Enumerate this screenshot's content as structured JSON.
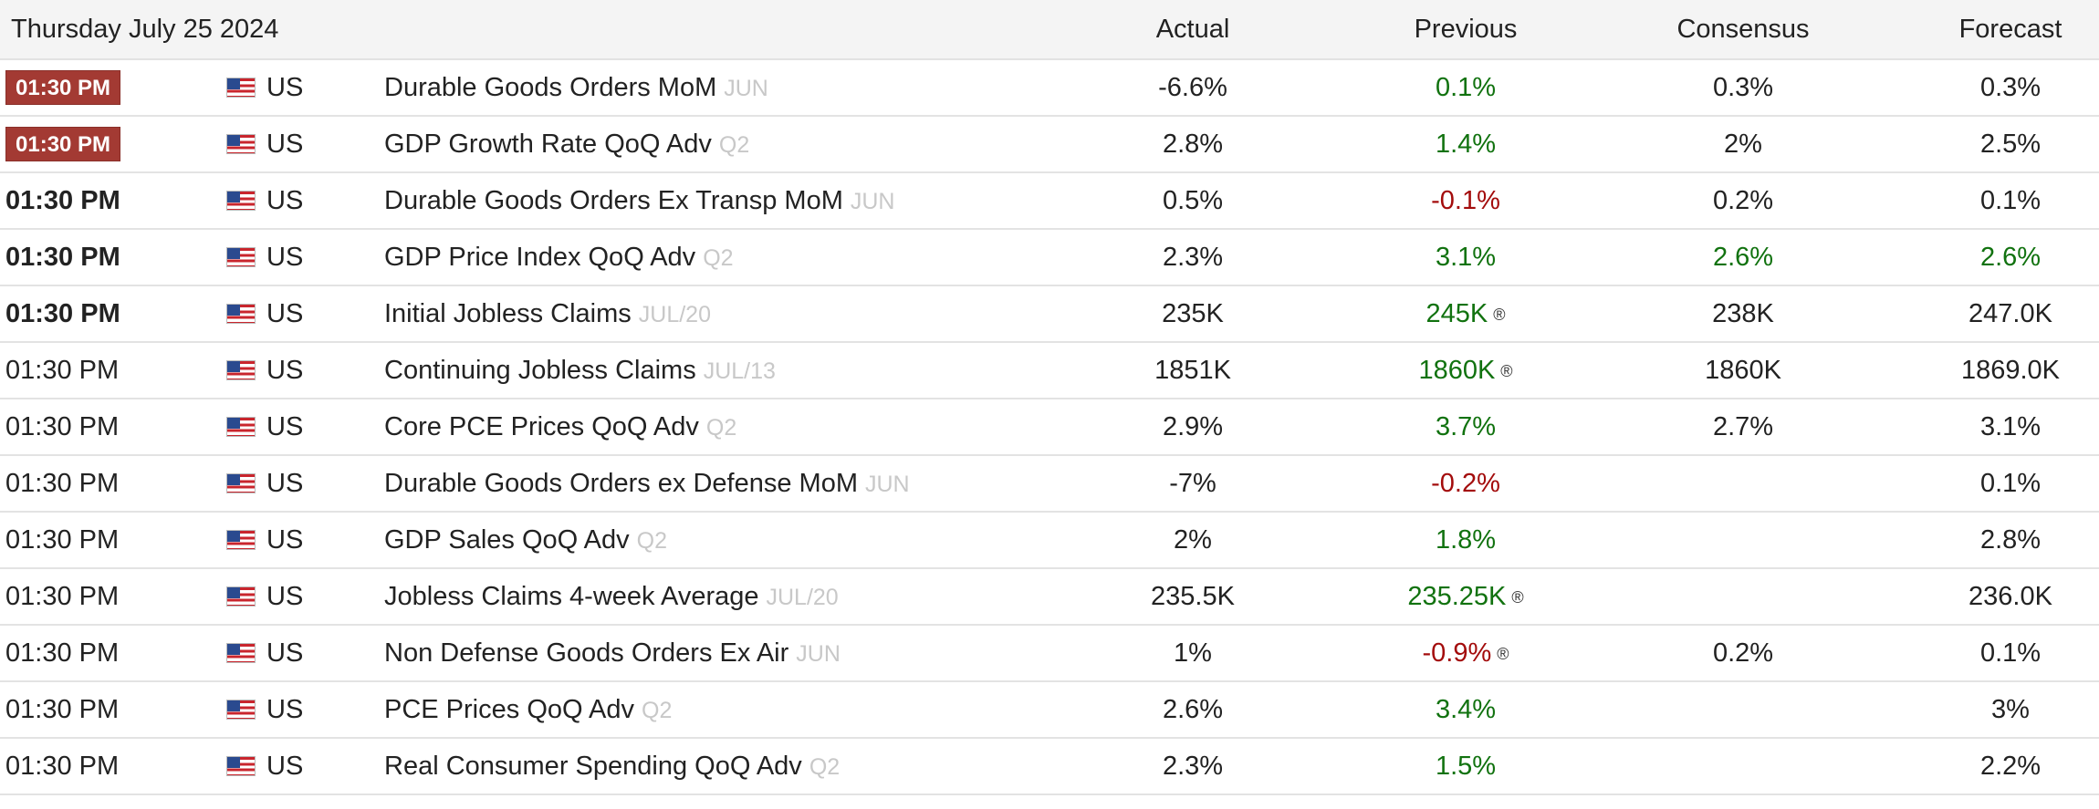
{
  "header": {
    "date": "Thursday July 25 2024",
    "actual": "Actual",
    "previous": "Previous",
    "consensus": "Consensus",
    "forecast": "Forecast"
  },
  "colors": {
    "badge": "#a33a33",
    "positive": "#11720f",
    "negative": "#a30c0c",
    "reference": "#c8c8c8"
  },
  "rows": [
    {
      "time": "01:30 PM",
      "time_style": "badge",
      "country": "US",
      "event": "Durable Goods Orders MoM",
      "ref": "JUN",
      "actual": "-6.6%",
      "previous": "0.1%",
      "previous_color": "pos",
      "previous_revised": "",
      "consensus": "0.3%",
      "consensus_color": "neutral",
      "forecast": "0.3%",
      "forecast_color": "neutral"
    },
    {
      "time": "01:30 PM",
      "time_style": "badge",
      "country": "US",
      "event": "GDP Growth Rate QoQ Adv",
      "ref": "Q2",
      "actual": "2.8%",
      "previous": "1.4%",
      "previous_color": "pos",
      "previous_revised": "",
      "consensus": "2%",
      "consensus_color": "neutral",
      "forecast": "2.5%",
      "forecast_color": "neutral"
    },
    {
      "time": "01:30 PM",
      "time_style": "bold",
      "country": "US",
      "event": "Durable Goods Orders Ex Transp MoM",
      "ref": "JUN",
      "actual": "0.5%",
      "previous": "-0.1%",
      "previous_color": "neg",
      "previous_revised": "",
      "consensus": "0.2%",
      "consensus_color": "neutral",
      "forecast": "0.1%",
      "forecast_color": "neutral"
    },
    {
      "time": "01:30 PM",
      "time_style": "bold",
      "country": "US",
      "event": "GDP Price Index QoQ Adv",
      "ref": "Q2",
      "actual": "2.3%",
      "previous": "3.1%",
      "previous_color": "pos",
      "previous_revised": "",
      "consensus": "2.6%",
      "consensus_color": "pos",
      "forecast": "2.6%",
      "forecast_color": "pos"
    },
    {
      "time": "01:30 PM",
      "time_style": "bold",
      "country": "US",
      "event": "Initial Jobless Claims",
      "ref": "JUL/20",
      "actual": "235K",
      "previous": "245K",
      "previous_color": "pos",
      "previous_revised": "®",
      "consensus": "238K",
      "consensus_color": "neutral",
      "forecast": "247.0K",
      "forecast_color": "neutral"
    },
    {
      "time": "01:30 PM",
      "time_style": "normal",
      "country": "US",
      "event": "Continuing Jobless Claims",
      "ref": "JUL/13",
      "actual": "1851K",
      "previous": "1860K",
      "previous_color": "pos",
      "previous_revised": "®",
      "consensus": "1860K",
      "consensus_color": "neutral",
      "forecast": "1869.0K",
      "forecast_color": "neutral"
    },
    {
      "time": "01:30 PM",
      "time_style": "normal",
      "country": "US",
      "event": "Core PCE Prices QoQ Adv",
      "ref": "Q2",
      "actual": "2.9%",
      "previous": "3.7%",
      "previous_color": "pos",
      "previous_revised": "",
      "consensus": "2.7%",
      "consensus_color": "neutral",
      "forecast": "3.1%",
      "forecast_color": "neutral"
    },
    {
      "time": "01:30 PM",
      "time_style": "normal",
      "country": "US",
      "event": "Durable Goods Orders ex Defense MoM",
      "ref": "JUN",
      "actual": "-7%",
      "previous": "-0.2%",
      "previous_color": "neg",
      "previous_revised": "",
      "consensus": "",
      "consensus_color": "neutral",
      "forecast": "0.1%",
      "forecast_color": "neutral"
    },
    {
      "time": "01:30 PM",
      "time_style": "normal",
      "country": "US",
      "event": "GDP Sales QoQ Adv",
      "ref": "Q2",
      "actual": "2%",
      "previous": "1.8%",
      "previous_color": "pos",
      "previous_revised": "",
      "consensus": "",
      "consensus_color": "neutral",
      "forecast": "2.8%",
      "forecast_color": "neutral"
    },
    {
      "time": "01:30 PM",
      "time_style": "normal",
      "country": "US",
      "event": "Jobless Claims 4-week Average",
      "ref": "JUL/20",
      "actual": "235.5K",
      "previous": "235.25K",
      "previous_color": "pos",
      "previous_revised": "®",
      "consensus": "",
      "consensus_color": "neutral",
      "forecast": "236.0K",
      "forecast_color": "neutral"
    },
    {
      "time": "01:30 PM",
      "time_style": "normal",
      "country": "US",
      "event": "Non Defense Goods Orders Ex Air",
      "ref": "JUN",
      "actual": "1%",
      "previous": "-0.9%",
      "previous_color": "neg",
      "previous_revised": "®",
      "consensus": "0.2%",
      "consensus_color": "neutral",
      "forecast": "0.1%",
      "forecast_color": "neutral"
    },
    {
      "time": "01:30 PM",
      "time_style": "normal",
      "country": "US",
      "event": "PCE Prices QoQ Adv",
      "ref": "Q2",
      "actual": "2.6%",
      "previous": "3.4%",
      "previous_color": "pos",
      "previous_revised": "",
      "consensus": "",
      "consensus_color": "neutral",
      "forecast": "3%",
      "forecast_color": "neutral"
    },
    {
      "time": "01:30 PM",
      "time_style": "normal",
      "country": "US",
      "event": "Real Consumer Spending QoQ Adv",
      "ref": "Q2",
      "actual": "2.3%",
      "previous": "1.5%",
      "previous_color": "pos",
      "previous_revised": "",
      "consensus": "",
      "consensus_color": "neutral",
      "forecast": "2.2%",
      "forecast_color": "neutral"
    }
  ]
}
